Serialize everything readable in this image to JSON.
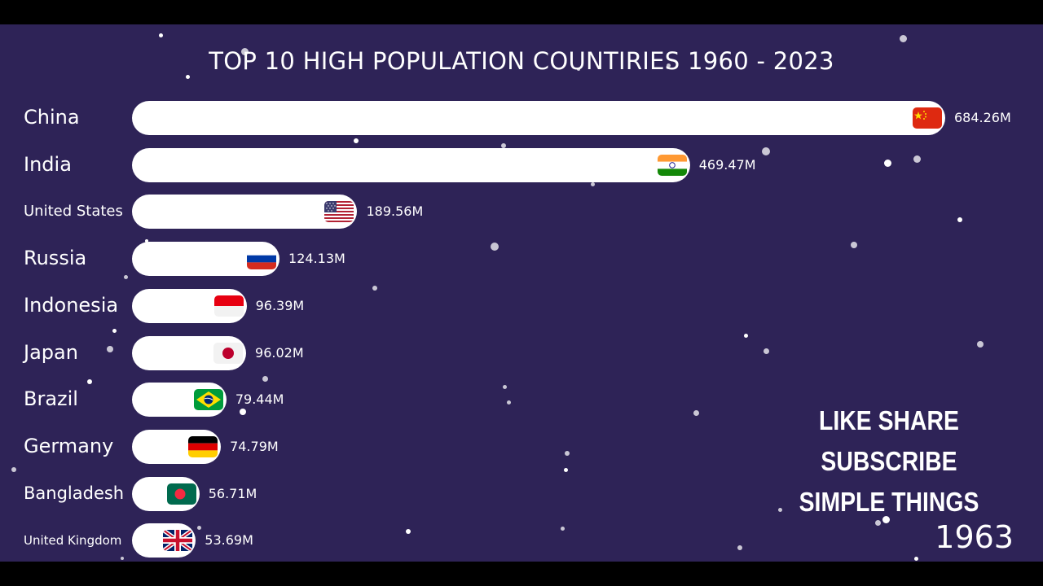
{
  "title": "TOP 10 HIGH POPULATION COUNTIRIES 1960 - 2023",
  "promo": {
    "line1": "LIKE SHARE SUBSCRIBE",
    "line2": "SIMPLE THINGS"
  },
  "year": "1963",
  "colors": {
    "background": "#2e2357",
    "bar": "#ffffff",
    "text": "#ffffff"
  },
  "chart_data": {
    "type": "bar",
    "orientation": "horizontal",
    "title": "TOP 10 HIGH POPULATION COUNTIRIES 1960 - 2023",
    "year": "1963",
    "categories": [
      "China",
      "India",
      "United States",
      "Russia",
      "Indonesia",
      "Japan",
      "Brazil",
      "Germany",
      "Bangladesh",
      "United Kingdom"
    ],
    "values": [
      684.26,
      469.47,
      189.56,
      124.13,
      96.39,
      96.02,
      79.44,
      74.79,
      56.71,
      53.69
    ],
    "value_labels": [
      "684.26M",
      "469.47M",
      "189.56M",
      "124.13M",
      "96.39M",
      "96.02M",
      "79.44M",
      "74.79M",
      "56.71M",
      "53.69M"
    ],
    "flags": [
      "china-flag-icon",
      "india-flag-icon",
      "usa-flag-icon",
      "russia-flag-icon",
      "indonesia-flag-icon",
      "japan-flag-icon",
      "brazil-flag-icon",
      "germany-flag-icon",
      "bangladesh-flag-icon",
      "uk-flag-icon"
    ],
    "unit": "M"
  }
}
